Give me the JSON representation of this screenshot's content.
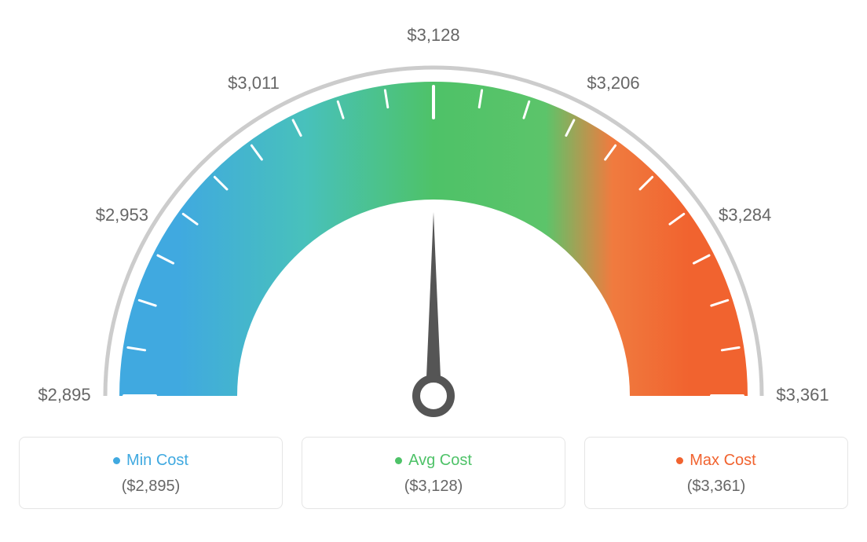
{
  "gauge": {
    "type": "gauge",
    "min": 2895,
    "max": 3361,
    "value": 3128,
    "tick_labels": [
      "$2,895",
      "$2,953",
      "$3,011",
      "$3,128",
      "$3,206",
      "$3,284",
      "$3,361"
    ],
    "tick_angles_deg": [
      180,
      150,
      120,
      90,
      60,
      30,
      0
    ],
    "tick_label_fontsize": 22,
    "tick_label_color": "#666666",
    "needle_color": "#555555",
    "needle_ring_color": "#555555",
    "outer_ring_color": "#cccccc",
    "arc_inner_radius": 250,
    "arc_outer_radius": 400,
    "outer_ring_radius": 418,
    "outer_ring_width": 5,
    "minor_tick_count": 21,
    "minor_tick_color": "#ffffff",
    "gradient_stops": [
      {
        "pct": 0,
        "color": "#40a9e0"
      },
      {
        "pct": 25,
        "color": "#48c1bb"
      },
      {
        "pct": 50,
        "color": "#4ec268"
      },
      {
        "pct": 72,
        "color": "#5cc46a"
      },
      {
        "pct": 85,
        "color": "#f07b3f"
      },
      {
        "pct": 100,
        "color": "#f1632f"
      }
    ],
    "background_color": "#ffffff"
  },
  "legend": {
    "min": {
      "label": "Min Cost",
      "value": "($2,895)",
      "color": "#40a9e0"
    },
    "avg": {
      "label": "Avg Cost",
      "value": "($3,128)",
      "color": "#4ec268"
    },
    "max": {
      "label": "Max Cost",
      "value": "($3,361)",
      "color": "#f1632f"
    },
    "label_fontsize": 20,
    "value_fontsize": 20,
    "border_color": "#e5e5e5",
    "border_radius": 8
  }
}
